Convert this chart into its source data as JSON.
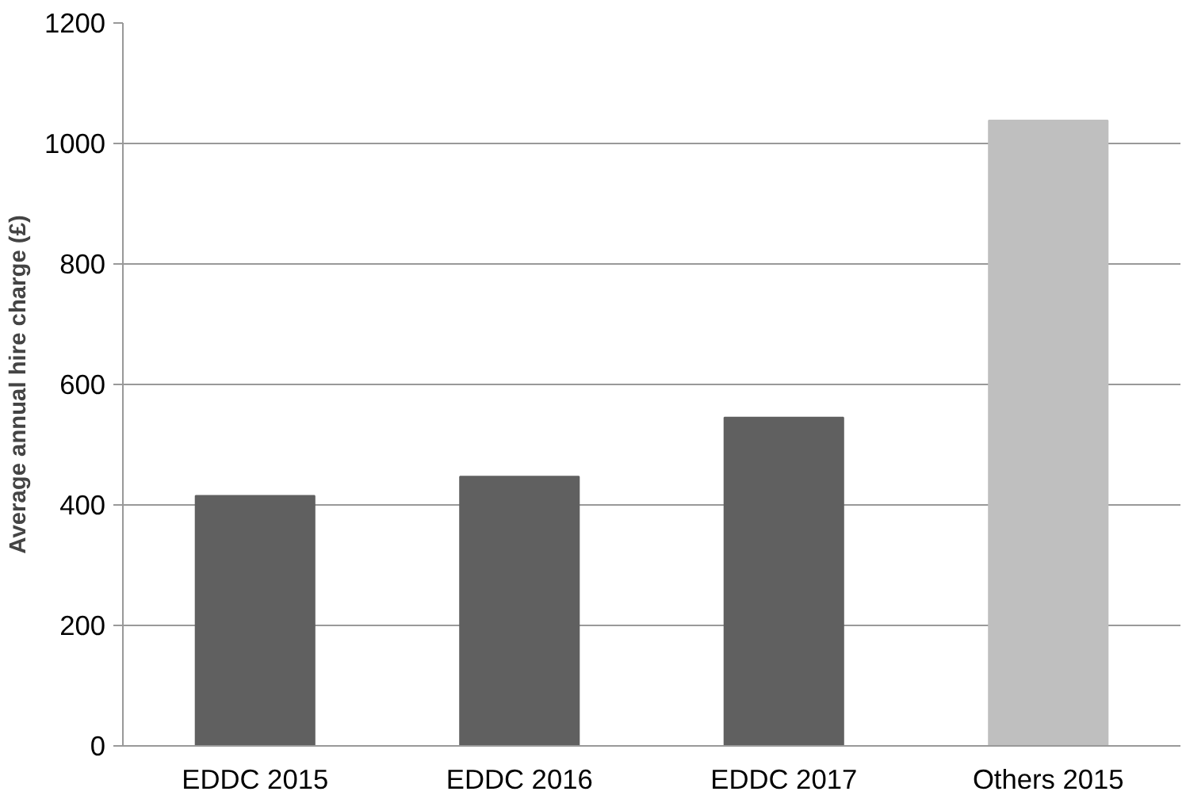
{
  "chart_data": {
    "type": "bar",
    "ylabel": "Average annual hire charge (£)",
    "categories": [
      "EDDC 2015",
      "EDDC 2016",
      "EDDC 2017",
      "Others 2015"
    ],
    "values": [
      415,
      447,
      545,
      1038
    ],
    "colors": [
      "#606060",
      "#606060",
      "#606060",
      "#bfbfbf"
    ],
    "ylim": [
      0,
      1200
    ],
    "yticks": [
      0,
      200,
      400,
      600,
      800,
      1000,
      1200
    ],
    "grid": "y"
  }
}
